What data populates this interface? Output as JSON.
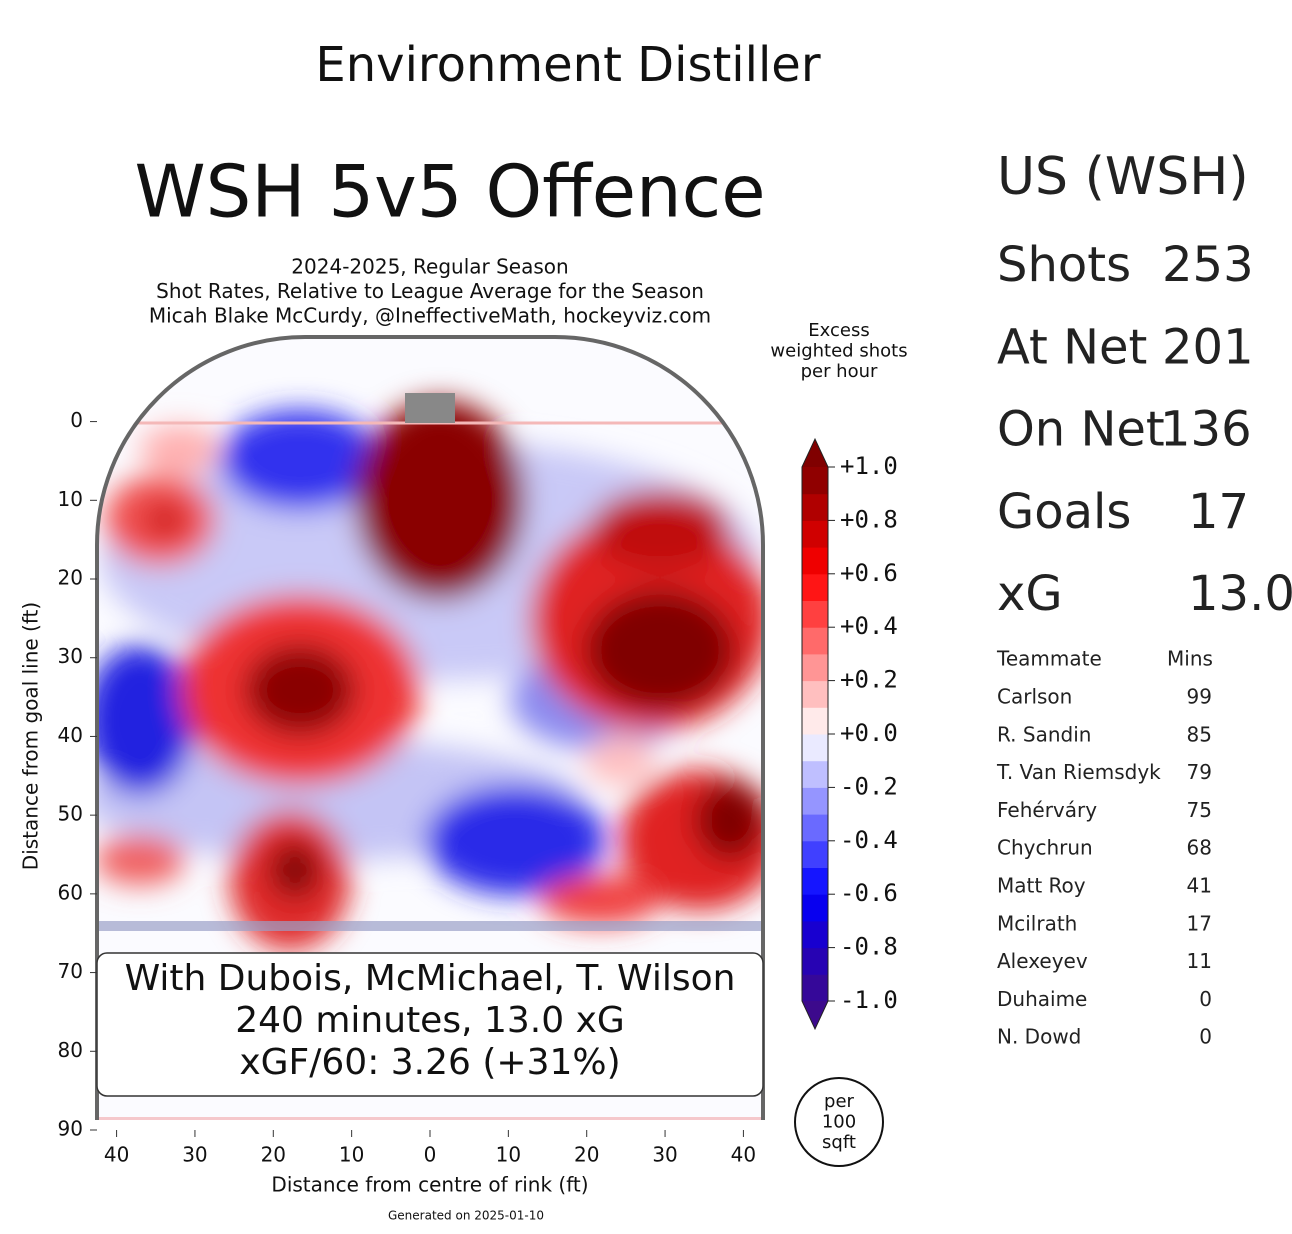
{
  "page_title": "Environment Distiller",
  "chart_data": {
    "type": "heatmap",
    "title": "WSH 5v5 Offence",
    "subtitle": [
      "2024-2025, Regular Season",
      "Shot Rates, Relative to League Average for the Season",
      "Micah Blake McCurdy, @IneffectiveMath, hockeyviz.com"
    ],
    "x_label": "Distance from centre of rink (ft)",
    "y_label": "Distance from goal line (ft)",
    "xlim": [
      -42.5,
      42.5
    ],
    "ylim": [
      -11,
      90
    ],
    "y_inverted": true,
    "xticks": [
      {
        "value": -40,
        "label": "40"
      },
      {
        "value": -30,
        "label": "30"
      },
      {
        "value": -20,
        "label": "20"
      },
      {
        "value": -10,
        "label": "10"
      },
      0,
      10,
      20,
      30,
      40
    ],
    "yticks": [
      0,
      10,
      20,
      30,
      40,
      50,
      60,
      70,
      80,
      90
    ],
    "colorbar_label": [
      "Excess",
      "weighted shots",
      "per hour"
    ],
    "clim": [
      -1,
      1
    ],
    "colorbar_ticks": [
      {
        "value": 1,
        "label": "+1.0"
      },
      {
        "value": 0.8,
        "label": "+0.8"
      },
      {
        "value": 0.6,
        "label": "+0.6"
      },
      {
        "value": 0.4,
        "label": "+0.4"
      },
      {
        "value": 0.2,
        "label": "+0.2"
      },
      {
        "value": 0,
        "label": "+0.0"
      },
      {
        "value": -0.2,
        "label": "-0.2"
      },
      {
        "value": -0.4,
        "label": "-0.4"
      },
      {
        "value": -0.6,
        "label": "-0.6"
      },
      {
        "value": -0.8,
        "label": "-0.8"
      },
      {
        "value": -1,
        "label": "-1.0"
      }
    ],
    "annotation": [
      "With Dubois, McMichael, T. Wilson",
      "240 minutes, 13.0 xG",
      "xGF/60: 3.26 (+31%)"
    ],
    "unit_badge": [
      "per",
      "100",
      "sqft"
    ],
    "footer": "Generated on 2025-01-10"
  },
  "stats": {
    "heading": "US (WSH)",
    "rows": [
      {
        "label": "Shots",
        "value": 253
      },
      {
        "label": "At Net",
        "value": 201
      },
      {
        "label": "On Net",
        "value": 136
      },
      {
        "label": "Goals",
        "value": 17
      },
      {
        "label": "xG",
        "value": "13.0"
      }
    ]
  },
  "teammates": {
    "headers": [
      "Teammate",
      "Mins"
    ],
    "rows": [
      {
        "name": "Carlson",
        "mins": 99
      },
      {
        "name": "R. Sandin",
        "mins": 85
      },
      {
        "name": "T. Van Riemsdyk",
        "mins": 79
      },
      {
        "name": "Fehérváry",
        "mins": 75
      },
      {
        "name": "Chychrun",
        "mins": 68
      },
      {
        "name": "Matt Roy",
        "mins": 41
      },
      {
        "name": "Mcilrath",
        "mins": 17
      },
      {
        "name": "Alexeyev",
        "mins": 11
      },
      {
        "name": "Duhaime",
        "mins": 0
      },
      {
        "name": "N. Dowd",
        "mins": 0
      }
    ]
  }
}
